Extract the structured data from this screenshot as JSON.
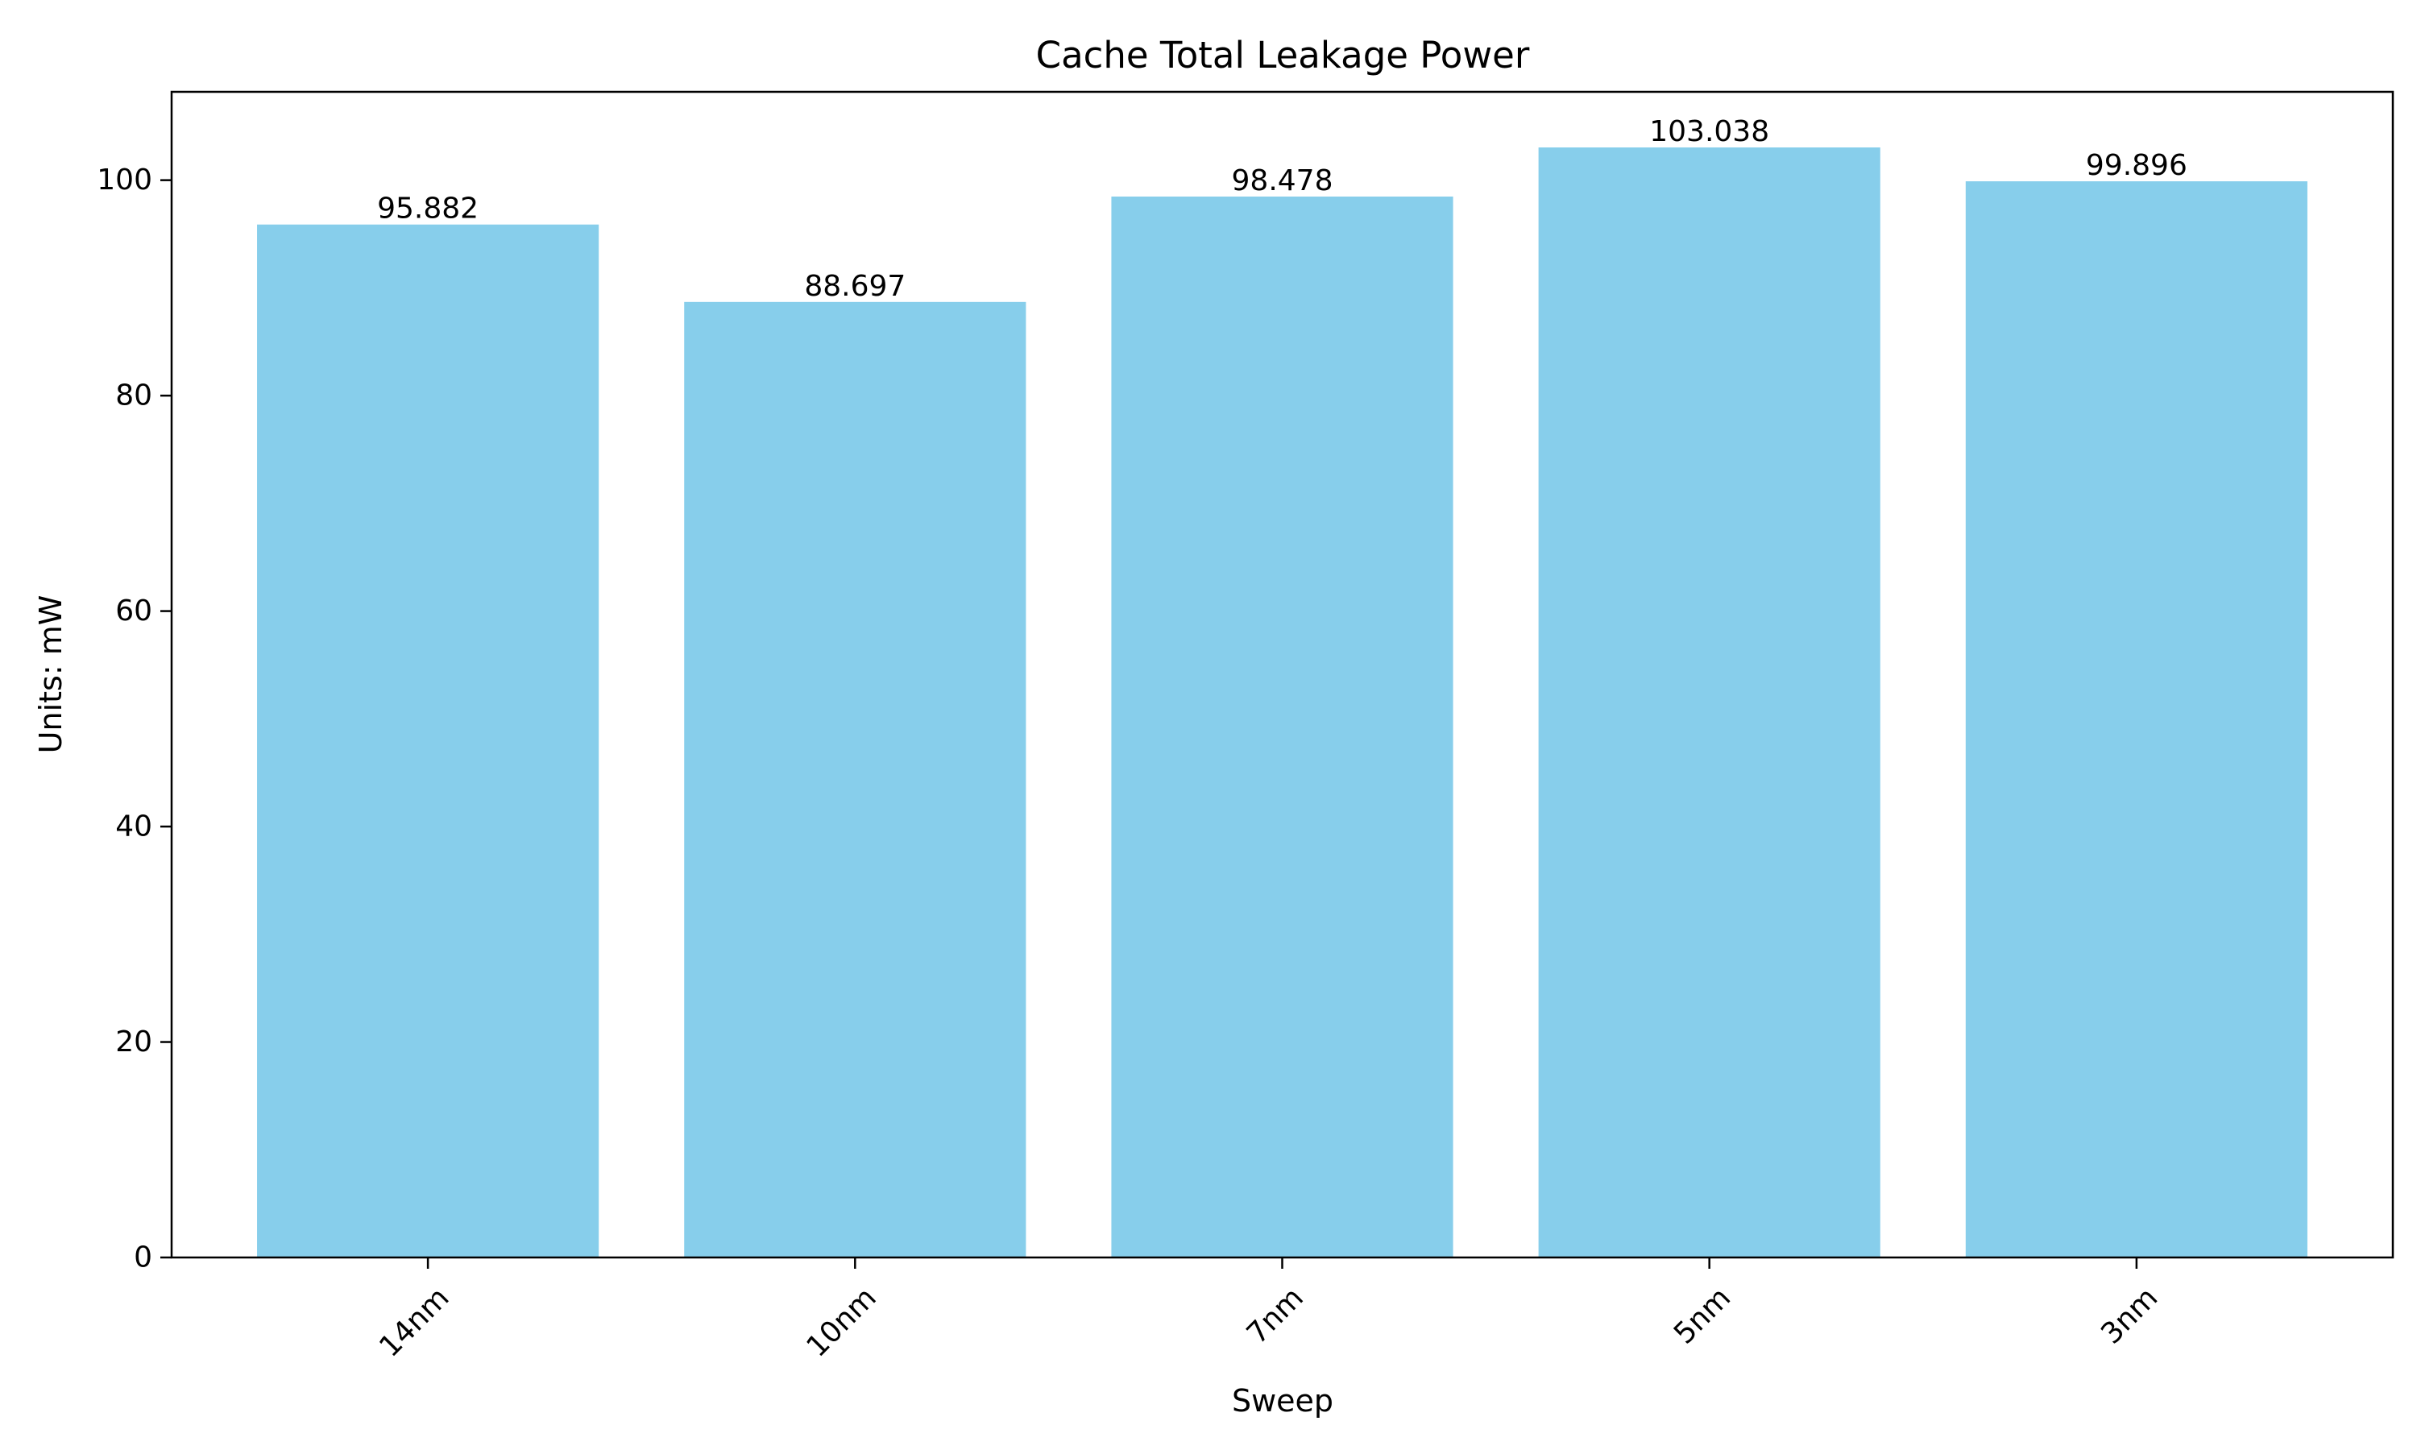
{
  "chart_data": {
    "type": "bar",
    "title": "Cache Total Leakage Power",
    "xlabel": "Sweep",
    "ylabel": "Units: mW",
    "categories": [
      "14nm",
      "10nm",
      "7nm",
      "5nm",
      "3nm"
    ],
    "values": [
      95.882,
      88.697,
      98.478,
      103.038,
      99.896
    ],
    "value_labels": [
      "95.882",
      "88.697",
      "98.478",
      "103.038",
      "99.896"
    ],
    "ylim": [
      0,
      108.2
    ],
    "yticks": [
      0,
      20,
      40,
      60,
      80,
      100
    ],
    "ytick_labels": [
      "0",
      "20",
      "40",
      "60",
      "80",
      "100"
    ],
    "grid": false,
    "bar_color": "#87CEEB",
    "xtick_rotation_deg": 45
  }
}
